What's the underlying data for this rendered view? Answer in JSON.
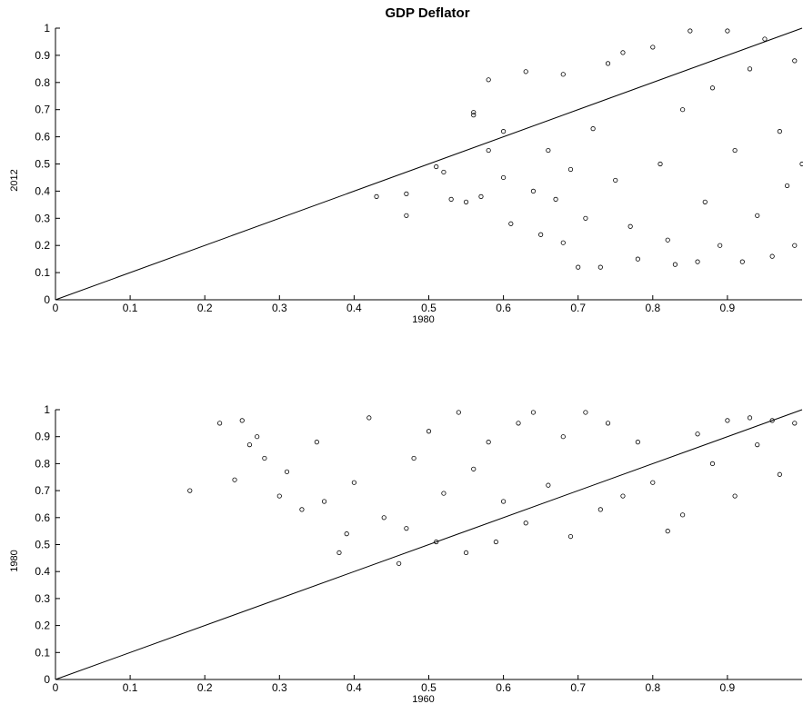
{
  "title": "GDP Deflator",
  "chart_data": [
    {
      "type": "scatter",
      "xlabel": "1980",
      "ylabel": "2012",
      "xlim": [
        0,
        1
      ],
      "ylim": [
        0,
        1
      ],
      "xticks": [
        "0",
        "0.1",
        "0.2",
        "0.3",
        "0.4",
        "0.5",
        "0.6",
        "0.7",
        "0.8",
        "0.9"
      ],
      "yticks": [
        "0",
        "0.1",
        "0.2",
        "0.3",
        "0.4",
        "0.5",
        "0.6",
        "0.7",
        "0.8",
        "0.9",
        "1"
      ],
      "reference_line": [
        [
          0,
          0
        ],
        [
          1,
          1
        ]
      ],
      "marker": "open-circle",
      "grid": false,
      "points": [
        [
          0.43,
          0.38
        ],
        [
          0.47,
          0.39
        ],
        [
          0.47,
          0.31
        ],
        [
          0.51,
          0.49
        ],
        [
          0.52,
          0.47
        ],
        [
          0.53,
          0.37
        ],
        [
          0.55,
          0.36
        ],
        [
          0.56,
          0.69
        ],
        [
          0.56,
          0.68
        ],
        [
          0.57,
          0.38
        ],
        [
          0.58,
          0.81
        ],
        [
          0.58,
          0.55
        ],
        [
          0.6,
          0.62
        ],
        [
          0.6,
          0.45
        ],
        [
          0.61,
          0.28
        ],
        [
          0.63,
          0.84
        ],
        [
          0.64,
          0.4
        ],
        [
          0.65,
          0.24
        ],
        [
          0.66,
          0.55
        ],
        [
          0.67,
          0.37
        ],
        [
          0.68,
          0.83
        ],
        [
          0.68,
          0.21
        ],
        [
          0.69,
          0.48
        ],
        [
          0.7,
          0.12
        ],
        [
          0.71,
          0.3
        ],
        [
          0.72,
          0.63
        ],
        [
          0.73,
          0.12
        ],
        [
          0.74,
          0.87
        ],
        [
          0.75,
          0.44
        ],
        [
          0.76,
          0.91
        ],
        [
          0.77,
          0.27
        ],
        [
          0.78,
          0.15
        ],
        [
          0.8,
          0.93
        ],
        [
          0.81,
          0.5
        ],
        [
          0.82,
          0.22
        ],
        [
          0.83,
          0.13
        ],
        [
          0.84,
          0.7
        ],
        [
          0.85,
          0.99
        ],
        [
          0.86,
          0.14
        ],
        [
          0.87,
          0.36
        ],
        [
          0.88,
          0.78
        ],
        [
          0.89,
          0.2
        ],
        [
          0.9,
          0.99
        ],
        [
          0.91,
          0.55
        ],
        [
          0.92,
          0.14
        ],
        [
          0.93,
          0.85
        ],
        [
          0.94,
          0.31
        ],
        [
          0.95,
          0.96
        ],
        [
          0.96,
          0.16
        ],
        [
          0.97,
          0.62
        ],
        [
          0.98,
          0.42
        ],
        [
          0.99,
          0.88
        ],
        [
          0.99,
          0.2
        ],
        [
          1.0,
          0.5
        ]
      ]
    },
    {
      "type": "scatter",
      "xlabel": "1960",
      "ylabel": "1980",
      "xlim": [
        0,
        1
      ],
      "ylim": [
        0,
        1
      ],
      "xticks": [
        "0",
        "0.1",
        "0.2",
        "0.3",
        "0.4",
        "0.5",
        "0.6",
        "0.7",
        "0.8",
        "0.9"
      ],
      "yticks": [
        "0",
        "0.1",
        "0.2",
        "0.3",
        "0.4",
        "0.5",
        "0.6",
        "0.7",
        "0.8",
        "0.9",
        "1"
      ],
      "reference_line": [
        [
          0,
          0
        ],
        [
          1,
          1
        ]
      ],
      "marker": "open-circle",
      "grid": false,
      "points": [
        [
          0.18,
          0.7
        ],
        [
          0.22,
          0.95
        ],
        [
          0.24,
          0.74
        ],
        [
          0.25,
          0.96
        ],
        [
          0.26,
          0.87
        ],
        [
          0.27,
          0.9
        ],
        [
          0.28,
          0.82
        ],
        [
          0.3,
          0.68
        ],
        [
          0.31,
          0.77
        ],
        [
          0.33,
          0.63
        ],
        [
          0.35,
          0.88
        ],
        [
          0.36,
          0.66
        ],
        [
          0.38,
          0.47
        ],
        [
          0.39,
          0.54
        ],
        [
          0.4,
          0.73
        ],
        [
          0.42,
          0.97
        ],
        [
          0.44,
          0.6
        ],
        [
          0.46,
          0.43
        ],
        [
          0.47,
          0.56
        ],
        [
          0.48,
          0.82
        ],
        [
          0.5,
          0.92
        ],
        [
          0.51,
          0.51
        ],
        [
          0.52,
          0.69
        ],
        [
          0.54,
          0.99
        ],
        [
          0.55,
          0.47
        ],
        [
          0.56,
          0.78
        ],
        [
          0.58,
          0.88
        ],
        [
          0.59,
          0.51
        ],
        [
          0.6,
          0.66
        ],
        [
          0.62,
          0.95
        ],
        [
          0.63,
          0.58
        ],
        [
          0.64,
          0.99
        ],
        [
          0.66,
          0.72
        ],
        [
          0.68,
          0.9
        ],
        [
          0.69,
          0.53
        ],
        [
          0.71,
          0.99
        ],
        [
          0.73,
          0.63
        ],
        [
          0.74,
          0.95
        ],
        [
          0.76,
          0.68
        ],
        [
          0.78,
          0.88
        ],
        [
          0.8,
          0.73
        ],
        [
          0.82,
          0.55
        ],
        [
          0.84,
          0.61
        ],
        [
          0.86,
          0.91
        ],
        [
          0.88,
          0.8
        ],
        [
          0.9,
          0.96
        ],
        [
          0.91,
          0.68
        ],
        [
          0.93,
          0.97
        ],
        [
          0.94,
          0.87
        ],
        [
          0.96,
          0.96
        ],
        [
          0.97,
          0.76
        ],
        [
          0.99,
          0.95
        ]
      ]
    }
  ]
}
